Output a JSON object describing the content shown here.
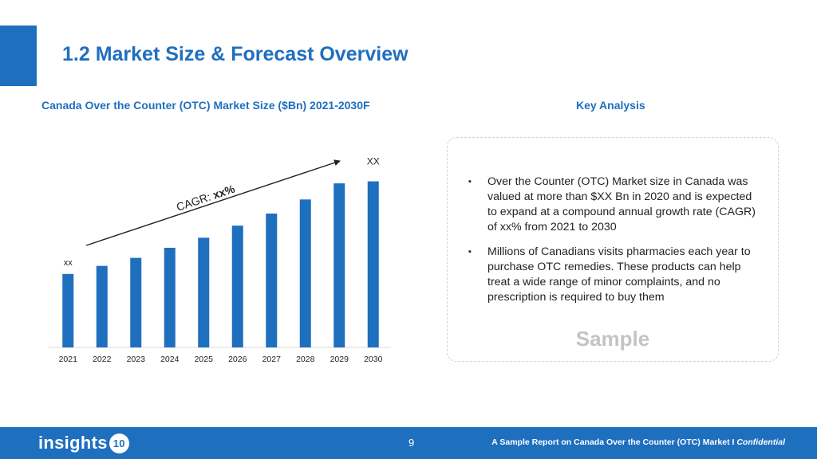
{
  "header": {
    "title": "1.2 Market Size & Forecast Overview"
  },
  "chart_heading": "Canada Over the Counter (OTC) Market Size ($Bn) 2021-2030F",
  "key_analysis": {
    "heading": "Key Analysis",
    "bullet_symbol": "▪",
    "bullets": [
      "Over the Counter (OTC) Market size in Canada was valued at more than $XX Bn in 2020 and is expected to expand at a compound annual growth rate (CAGR) of xx% from 2021 to 2030",
      "Millions of Canadians visits pharmacies each year to purchase OTC remedies. These products can help treat a wide range of minor complaints, and no prescription is required to buy them"
    ],
    "watermark": "Sample"
  },
  "chart_data": {
    "type": "bar",
    "title": "Canada Over the Counter (OTC) Market Size ($Bn) 2021-2030F",
    "categories": [
      "2021",
      "2022",
      "2023",
      "2024",
      "2025",
      "2026",
      "2027",
      "2028",
      "2029",
      "2030"
    ],
    "values": [
      36.5,
      40.5,
      44.5,
      49.5,
      54.5,
      60.5,
      66.5,
      73.5,
      81.5,
      82.5
    ],
    "ylim": [
      0,
      95
    ],
    "axis_values_printed": false,
    "grid": false,
    "color": "#1f6fbf",
    "data_labels": {
      "first": "xx",
      "last": "XX"
    },
    "annotation": {
      "prefix": "CAGR: ",
      "value": "xx%"
    }
  },
  "footer": {
    "logo_text": "insights",
    "logo_badge": "10",
    "page_number": "9",
    "note": "A Sample Report on Canada Over the Counter (OTC) Market I ",
    "note_italic": "Confidential"
  }
}
